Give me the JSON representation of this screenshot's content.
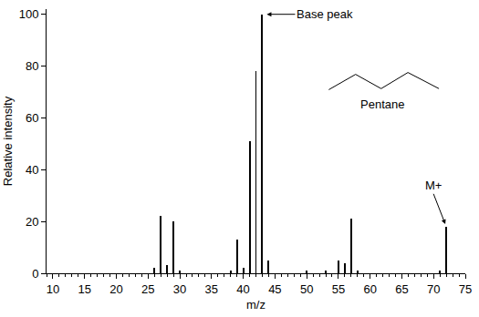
{
  "chart_data": {
    "type": "bar",
    "x_label": "m/z",
    "y_label": "Relative intensity",
    "x": [
      26,
      27,
      28,
      29,
      30,
      38,
      39,
      40,
      41,
      42,
      43,
      44,
      50,
      53,
      55,
      56,
      57,
      58,
      71,
      72
    ],
    "values": [
      2,
      22,
      3,
      20,
      1,
      1,
      13,
      2,
      51,
      78,
      100,
      5,
      1,
      1,
      5,
      4,
      21,
      1,
      1,
      18
    ],
    "color": "#000000",
    "xlim": [
      9,
      75
    ],
    "xticks": [
      10,
      15,
      20,
      25,
      30,
      35,
      40,
      45,
      50,
      55,
      60,
      65,
      70,
      75
    ],
    "ylim": [
      0,
      102
    ],
    "yticks": [
      0,
      20,
      40,
      60,
      80,
      100
    ],
    "grid": false,
    "annotations": [
      {
        "text": "Base peak",
        "x": 43,
        "y": 100
      },
      {
        "text": "M+",
        "x": 72,
        "y": 18
      }
    ],
    "structure_label": "Pentane"
  }
}
